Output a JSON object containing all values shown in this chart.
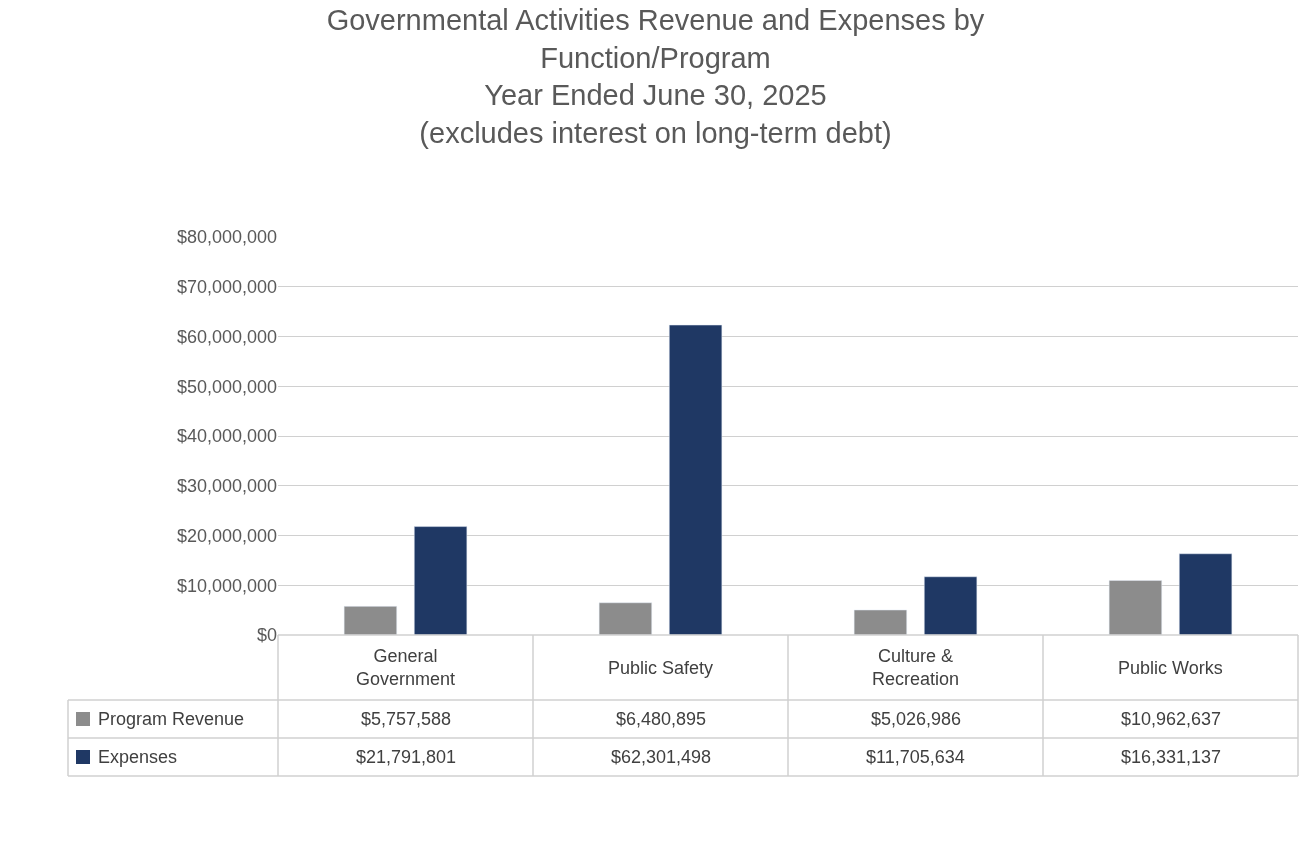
{
  "chart_data": {
    "type": "bar",
    "title": "Governmental Activities Revenue and Expenses by Function/Program",
    "subtitle": "Year Ended June 30, 2025\n(excludes interest on long-term debt)",
    "categories": [
      "General Government",
      "Public Safety",
      "Culture & Recreation",
      "Public Works"
    ],
    "series": [
      {
        "name": "Program Revenue",
        "color": "#8c8c8c",
        "values": [
          5757588,
          6480895,
          5026986,
          10962637
        ],
        "value_labels": [
          "$5,757,588",
          "$6,480,895",
          "$5,026,986",
          "$10,962,637"
        ]
      },
      {
        "name": "Expenses",
        "color": "#1f3864",
        "values": [
          21791801,
          62301498,
          11705634,
          16331137
        ],
        "value_labels": [
          "$21,791,801",
          "$62,301,498",
          "$11,705,634",
          "$16,331,137"
        ]
      }
    ],
    "ylim": [
      0,
      80000000
    ],
    "yticks": [
      {
        "value": 0,
        "label": "$0"
      },
      {
        "value": 10000000,
        "label": "$10,000,000"
      },
      {
        "value": 20000000,
        "label": "$20,000,000"
      },
      {
        "value": 30000000,
        "label": "$30,000,000"
      },
      {
        "value": 40000000,
        "label": "$40,000,000"
      },
      {
        "value": 50000000,
        "label": "$50,000,000"
      },
      {
        "value": 60000000,
        "label": "$60,000,000"
      },
      {
        "value": 70000000,
        "label": "$70,000,000"
      },
      {
        "value": 80000000,
        "label": "$80,000,000"
      }
    ],
    "grid": "y",
    "legend": "bottom left"
  }
}
